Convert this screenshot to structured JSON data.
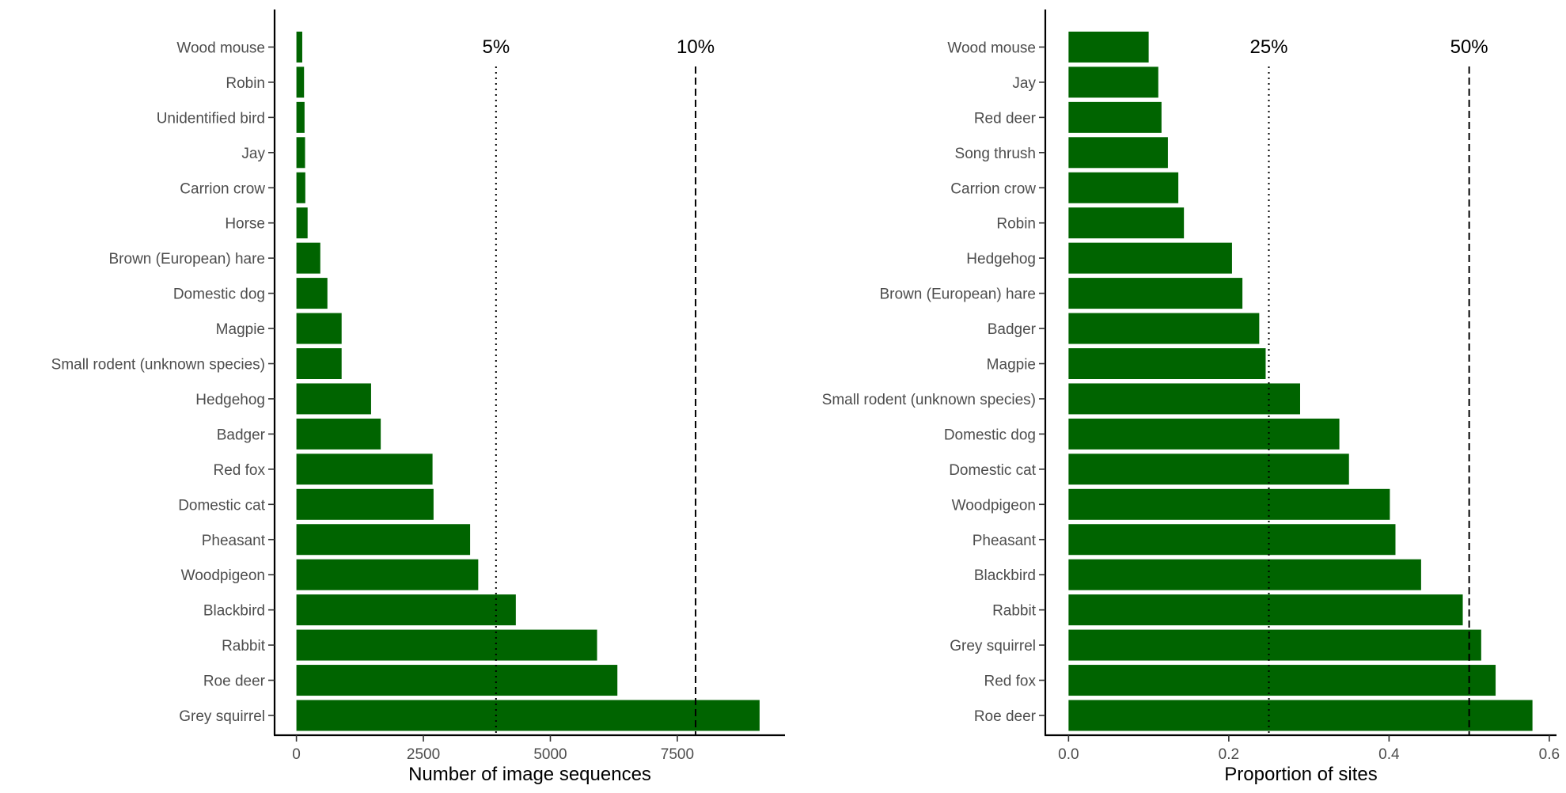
{
  "chart_data": [
    {
      "type": "bar",
      "orientation": "horizontal",
      "categories": [
        "Grey squirrel",
        "Roe deer",
        "Rabbit",
        "Blackbird",
        "Woodpigeon",
        "Pheasant",
        "Domestic cat",
        "Red fox",
        "Badger",
        "Hedgehog",
        "Small rodent (unknown species)",
        "Magpie",
        "Domestic dog",
        "Brown (European) hare",
        "Horse",
        "Carrion crow",
        "Jay",
        "Unidentified bird",
        "Robin",
        "Wood mouse"
      ],
      "values": [
        9120,
        6320,
        5920,
        4320,
        3580,
        3420,
        2700,
        2680,
        1660,
        1470,
        890,
        890,
        610,
        470,
        220,
        175,
        170,
        160,
        150,
        115
      ],
      "xlabel": "Number of image sequences",
      "ylabel": "",
      "xlim": [
        -430,
        9620
      ],
      "x_ticks": [
        0,
        2500,
        5000,
        7500
      ],
      "x_tick_labels": [
        "0",
        "2500",
        "5000",
        "7500"
      ],
      "reference_lines": [
        {
          "value": 3930,
          "label": "5%",
          "style": "dotted"
        },
        {
          "value": 7860,
          "label": "10%",
          "style": "dashed"
        }
      ],
      "bar_color": "#006400",
      "grid": false,
      "legend": "none"
    },
    {
      "type": "bar",
      "orientation": "horizontal",
      "categories": [
        "Roe deer",
        "Red fox",
        "Grey squirrel",
        "Rabbit",
        "Blackbird",
        "Pheasant",
        "Woodpigeon",
        "Domestic cat",
        "Domestic dog",
        "Small rodent (unknown species)",
        "Magpie",
        "Badger",
        "Brown (European) hare",
        "Hedgehog",
        "Robin",
        "Carrion crow",
        "Song thrush",
        "Red deer",
        "Jay",
        "Wood mouse"
      ],
      "values": [
        0.579,
        0.533,
        0.515,
        0.492,
        0.44,
        0.408,
        0.401,
        0.35,
        0.338,
        0.289,
        0.246,
        0.238,
        0.217,
        0.204,
        0.144,
        0.137,
        0.124,
        0.116,
        0.112,
        0.1
      ],
      "xlabel": "Proportion of sites",
      "ylabel": "",
      "xlim": [
        -0.029,
        0.609
      ],
      "x_ticks": [
        0.0,
        0.2,
        0.4,
        0.6
      ],
      "x_tick_labels": [
        "0.0",
        "0.2",
        "0.4",
        "0.6"
      ],
      "reference_lines": [
        {
          "value": 0.25,
          "label": "25%",
          "style": "dotted"
        },
        {
          "value": 0.5,
          "label": "50%",
          "style": "dashed"
        }
      ],
      "bar_color": "#006400",
      "grid": false,
      "legend": "none"
    }
  ]
}
